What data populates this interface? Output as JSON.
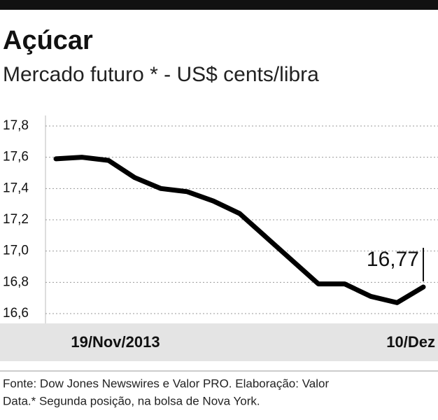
{
  "chart_data": {
    "type": "line",
    "title": "Açúcar",
    "subtitle": "Mercado futuro * - US$ cents/libra",
    "categories": [
      "19/Nov/2013",
      null,
      null,
      null,
      null,
      null,
      null,
      null,
      null,
      null,
      null,
      null,
      null,
      null,
      "10/Dez"
    ],
    "values": [
      17.59,
      17.6,
      17.58,
      17.47,
      17.4,
      17.38,
      17.32,
      17.24,
      17.09,
      16.94,
      16.79,
      16.79,
      16.71,
      16.67,
      16.77
    ],
    "value_labels": [
      null,
      null,
      null,
      null,
      null,
      null,
      null,
      null,
      null,
      null,
      null,
      null,
      null,
      null,
      "16,77"
    ],
    "color": "#000000",
    "ylim": [
      16.6,
      17.8
    ],
    "yticks": [
      {
        "value": 16.6,
        "label": "16,6"
      },
      {
        "value": 16.8,
        "label": "16,8"
      },
      {
        "value": 17.0,
        "label": "17,0"
      },
      {
        "value": 17.2,
        "label": "17,2"
      },
      {
        "value": 17.4,
        "label": "17,4"
      },
      {
        "value": 17.6,
        "label": "17,6"
      },
      {
        "value": 17.8,
        "label": "17,8"
      }
    ],
    "grid": true,
    "source": [
      "Fonte: Dow Jones Newswires e Valor PRO. Elaboração: Valor",
      "Data.* Segunda posição, na bolsa de Nova York."
    ]
  }
}
